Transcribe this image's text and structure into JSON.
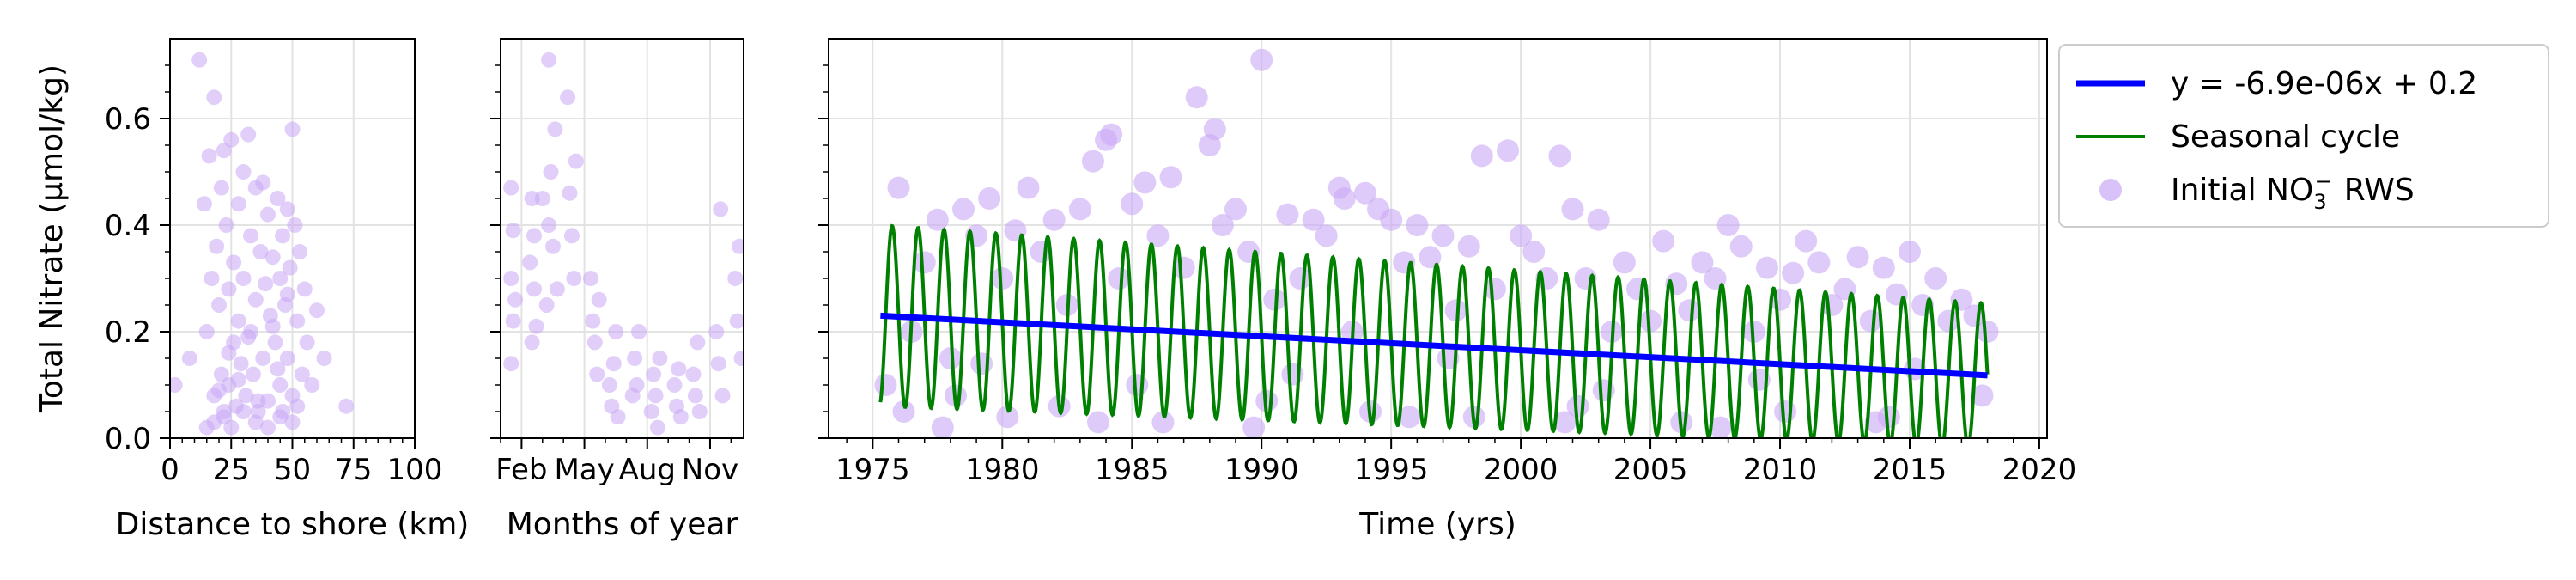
{
  "chart_data": [
    {
      "id": "distance",
      "type": "scatter",
      "title": "",
      "xlabel": "Distance to shore (km)",
      "ylabel": "Total Nitrate (µmol/kg)",
      "xlim": [
        0,
        100
      ],
      "ylim": [
        0,
        0.75
      ],
      "xticks": [
        0,
        25,
        50,
        75,
        100
      ],
      "xtick_labels": [
        "0",
        "25",
        "50",
        "75",
        "100"
      ],
      "yticks": [
        0.0,
        0.2,
        0.4,
        0.6
      ],
      "ytick_labels": [
        "0.0",
        "0.2",
        "0.4",
        "0.6"
      ],
      "grid": true,
      "point_color": "#c9a8f5",
      "series": [
        {
          "x": [
            2,
            8,
            12,
            14,
            15,
            16,
            17,
            18,
            18,
            19,
            20,
            21,
            21,
            22,
            22,
            23,
            24,
            24,
            25,
            26,
            26,
            27,
            28,
            28,
            29,
            30,
            30,
            31,
            32,
            33,
            33,
            34,
            35,
            35,
            36,
            37,
            38,
            38,
            39,
            40,
            40,
            41,
            42,
            43,
            44,
            45,
            45,
            46,
            46,
            47,
            48,
            48,
            49,
            50,
            50,
            51,
            52,
            53,
            54,
            55,
            56,
            58,
            60,
            63,
            72,
            15,
            18,
            22,
            25,
            30,
            35,
            40,
            45,
            50,
            20,
            28,
            36,
            44,
            52,
            24,
            32,
            42,
            48
          ],
          "y": [
            0.1,
            0.15,
            0.71,
            0.44,
            0.2,
            0.53,
            0.3,
            0.64,
            0.08,
            0.36,
            0.25,
            0.47,
            0.12,
            0.54,
            0.05,
            0.4,
            0.28,
            0.1,
            0.56,
            0.18,
            0.33,
            0.06,
            0.44,
            0.22,
            0.14,
            0.5,
            0.3,
            0.08,
            0.57,
            0.2,
            0.38,
            0.12,
            0.47,
            0.26,
            0.05,
            0.35,
            0.48,
            0.15,
            0.29,
            0.42,
            0.07,
            0.23,
            0.34,
            0.18,
            0.45,
            0.1,
            0.3,
            0.38,
            0.05,
            0.25,
            0.43,
            0.15,
            0.32,
            0.58,
            0.08,
            0.4,
            0.22,
            0.35,
            0.12,
            0.28,
            0.18,
            0.1,
            0.24,
            0.15,
            0.06,
            0.02,
            0.03,
            0.04,
            0.02,
            0.05,
            0.03,
            0.02,
            0.04,
            0.03,
            0.09,
            0.11,
            0.07,
            0.13,
            0.06,
            0.16,
            0.19,
            0.21,
            0.27
          ]
        }
      ]
    },
    {
      "id": "months",
      "type": "scatter",
      "title": "",
      "xlabel": "Months of year",
      "ylabel": "",
      "xlim": [
        1,
        12.6
      ],
      "ylim": [
        0,
        0.75
      ],
      "xticks": [
        2,
        5,
        8,
        11
      ],
      "xtick_labels": [
        "Feb",
        "May",
        "Aug",
        "Nov"
      ],
      "yticks": [
        0.0,
        0.2,
        0.4,
        0.6
      ],
      "ytick_labels": [
        "",
        "",
        "",
        ""
      ],
      "grid": true,
      "point_color": "#c9a8f5",
      "series": [
        {
          "x": [
            1.5,
            1.5,
            1.5,
            1.6,
            1.6,
            1.7,
            2.4,
            2.5,
            2.5,
            2.6,
            2.6,
            2.7,
            3.3,
            3.3,
            3.4,
            3.5,
            3.6,
            3.7,
            4.2,
            4.3,
            4.4,
            4.5,
            4.6,
            5.3,
            5.4,
            5.5,
            5.6,
            5.7,
            6.2,
            6.3,
            6.4,
            6.5,
            6.6,
            7.3,
            7.4,
            7.5,
            7.6,
            8.2,
            8.3,
            8.4,
            8.5,
            8.6,
            9.3,
            9.4,
            9.5,
            9.6,
            10.2,
            10.3,
            10.4,
            10.5,
            11.3,
            11.4,
            11.5,
            11.6,
            12.2,
            12.3,
            12.4,
            12.5,
            3.0,
            3.2
          ],
          "y": [
            0.14,
            0.3,
            0.47,
            0.22,
            0.39,
            0.26,
            0.33,
            0.18,
            0.45,
            0.28,
            0.38,
            0.21,
            0.71,
            0.4,
            0.5,
            0.36,
            0.58,
            0.28,
            0.64,
            0.46,
            0.38,
            0.3,
            0.52,
            0.3,
            0.22,
            0.18,
            0.12,
            0.26,
            0.1,
            0.06,
            0.14,
            0.2,
            0.04,
            0.08,
            0.15,
            0.1,
            0.2,
            0.05,
            0.12,
            0.08,
            0.02,
            0.15,
            0.1,
            0.06,
            0.13,
            0.04,
            0.12,
            0.08,
            0.18,
            0.05,
            0.2,
            0.14,
            0.43,
            0.08,
            0.3,
            0.22,
            0.36,
            0.15,
            0.45,
            0.25
          ]
        }
      ]
    },
    {
      "id": "time",
      "type": "line",
      "title": "",
      "xlabel": "Time (yrs)",
      "ylabel": "",
      "xlim": [
        1973.3,
        2020.3
      ],
      "ylim": [
        0,
        0.75
      ],
      "xticks": [
        1975,
        1980,
        1985,
        1990,
        1995,
        2000,
        2005,
        2010,
        2015,
        2020
      ],
      "xtick_labels": [
        "1975",
        "1980",
        "1985",
        "1990",
        "1995",
        "2000",
        "2005",
        "2010",
        "2015",
        "2020"
      ],
      "yticks": [
        0.0,
        0.2,
        0.4,
        0.6
      ],
      "ytick_labels": [
        "",
        "",
        "",
        ""
      ],
      "grid": true,
      "trend": {
        "label": "y = -6.9e-06x + 0.2",
        "color": "#0000ff",
        "x": [
          1975.3,
          2018.0
        ],
        "y": [
          0.23,
          0.118
        ]
      },
      "seasonal": {
        "label": "Seasonal cycle",
        "color": "#008000",
        "x_start": 1975.3,
        "x_end": 2018.0,
        "amplitude_start": 0.17,
        "amplitude_end": 0.135,
        "phase_year_fraction": 0.0
      },
      "scatter": {
        "label_main": "Initial NO",
        "label_sub": "3",
        "label_sup": "−",
        "label_suffix": "RWS",
        "color": "#c9a8f5",
        "x": [
          1975.5,
          1976,
          1976.5,
          1977,
          1977.5,
          1978,
          1978.5,
          1979,
          1979.5,
          1980,
          1980.5,
          1981,
          1981.5,
          1982,
          1982.5,
          1983,
          1983.5,
          1984,
          1984.2,
          1984.5,
          1985,
          1985.5,
          1986,
          1986.5,
          1987,
          1987.5,
          1988,
          1988.2,
          1988.5,
          1989,
          1989.5,
          1990,
          1990.5,
          1991,
          1991.5,
          1992,
          1992.5,
          1993,
          1993.2,
          1993.5,
          1994,
          1994.5,
          1995,
          1995.5,
          1996,
          1996.5,
          1997,
          1997.5,
          1998,
          1998.5,
          1999,
          1999.5,
          2000,
          2000.5,
          2001,
          2001.5,
          2002,
          2002.5,
          2003,
          2003.5,
          2004,
          2004.5,
          2005,
          2005.5,
          2006,
          2006.5,
          2007,
          2007.5,
          2008,
          2008.5,
          2009,
          2009.5,
          2010,
          2010.5,
          2011,
          2011.5,
          2012,
          2012.5,
          2013,
          2013.5,
          2014,
          2014.5,
          2015,
          2015.5,
          2016,
          2016.5,
          2017,
          2017.5,
          2018,
          1976.2,
          1978.2,
          1980.2,
          1982.2,
          1986.2,
          1990.2,
          1994.2,
          1998.2,
          2002.2,
          2006.2,
          2010.2,
          2014.2,
          2017.8,
          1977.7,
          1983.7,
          1989.7,
          1995.7,
          2001.7,
          2007.7,
          2013.7,
          1979.2,
          1985.2,
          1991.2,
          1997.2,
          2003.2,
          2009.2,
          2015.2
        ],
        "y": [
          0.1,
          0.47,
          0.2,
          0.33,
          0.41,
          0.15,
          0.43,
          0.38,
          0.45,
          0.3,
          0.39,
          0.47,
          0.35,
          0.41,
          0.25,
          0.43,
          0.52,
          0.56,
          0.57,
          0.3,
          0.44,
          0.48,
          0.38,
          0.49,
          0.32,
          0.64,
          0.55,
          0.58,
          0.4,
          0.43,
          0.35,
          0.71,
          0.26,
          0.42,
          0.3,
          0.41,
          0.38,
          0.47,
          0.45,
          0.2,
          0.46,
          0.43,
          0.41,
          0.33,
          0.4,
          0.34,
          0.38,
          0.24,
          0.36,
          0.53,
          0.28,
          0.54,
          0.38,
          0.35,
          0.3,
          0.53,
          0.43,
          0.3,
          0.41,
          0.2,
          0.33,
          0.28,
          0.22,
          0.37,
          0.29,
          0.24,
          0.33,
          0.3,
          0.4,
          0.36,
          0.2,
          0.32,
          0.26,
          0.31,
          0.37,
          0.33,
          0.25,
          0.28,
          0.34,
          0.22,
          0.32,
          0.27,
          0.35,
          0.25,
          0.3,
          0.22,
          0.26,
          0.23,
          0.2,
          0.05,
          0.08,
          0.04,
          0.06,
          0.03,
          0.07,
          0.05,
          0.04,
          0.06,
          0.03,
          0.05,
          0.04,
          0.08,
          0.02,
          0.03,
          0.02,
          0.04,
          0.03,
          0.02,
          0.03,
          0.14,
          0.1,
          0.12,
          0.15,
          0.09,
          0.11,
          0.13
        ]
      }
    }
  ],
  "legend": {
    "placement": "outside-right-top",
    "entries": [
      {
        "kind": "line",
        "label": "y = -6.9e-06x + 0.2",
        "color": "#0000ff"
      },
      {
        "kind": "line",
        "label": "Seasonal cycle",
        "color": "#008000"
      },
      {
        "kind": "marker",
        "label_main": "Initial NO",
        "label_sub": "3",
        "label_sup": "−",
        "label_suffix": "RWS",
        "color": "#c9a8f5"
      }
    ]
  }
}
